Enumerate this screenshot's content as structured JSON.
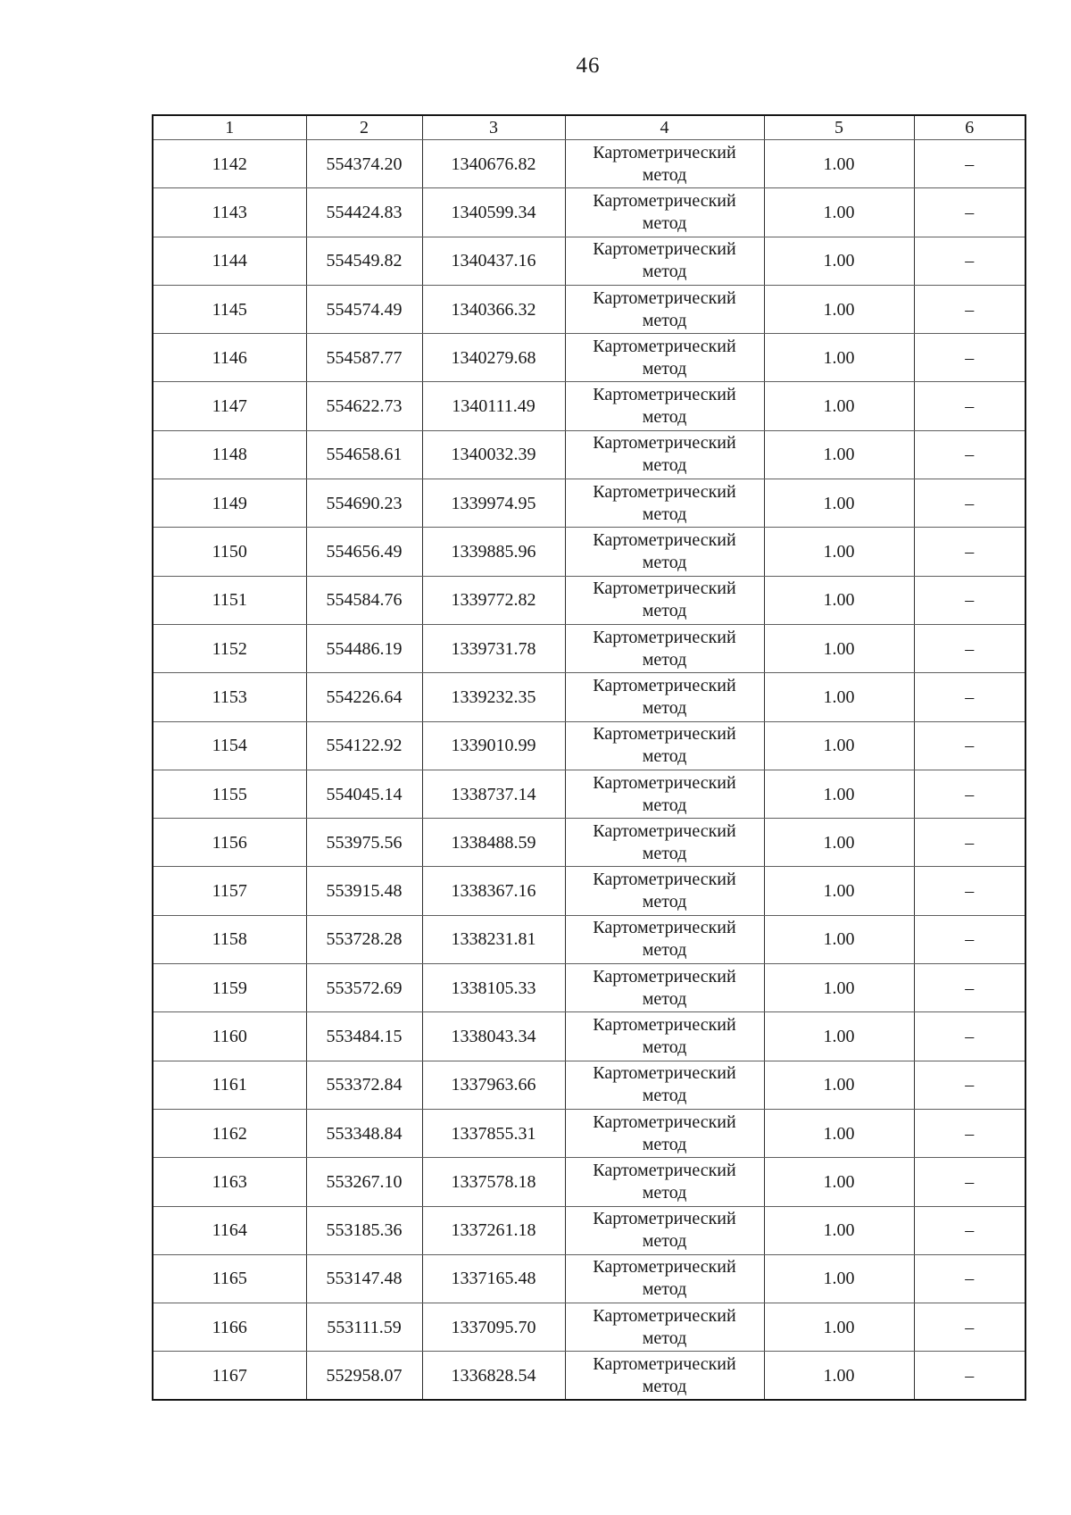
{
  "page_number": "46",
  "table": {
    "headers": [
      "1",
      "2",
      "3",
      "4",
      "5",
      "6"
    ],
    "rows": [
      [
        "1142",
        "554374.20",
        "1340676.82",
        "Картометрический метод",
        "1.00",
        "–"
      ],
      [
        "1143",
        "554424.83",
        "1340599.34",
        "Картометрический метод",
        "1.00",
        "–"
      ],
      [
        "1144",
        "554549.82",
        "1340437.16",
        "Картометрический метод",
        "1.00",
        "–"
      ],
      [
        "1145",
        "554574.49",
        "1340366.32",
        "Картометрический метод",
        "1.00",
        "–"
      ],
      [
        "1146",
        "554587.77",
        "1340279.68",
        "Картометрический метод",
        "1.00",
        "–"
      ],
      [
        "1147",
        "554622.73",
        "1340111.49",
        "Картометрический метод",
        "1.00",
        "–"
      ],
      [
        "1148",
        "554658.61",
        "1340032.39",
        "Картометрический метод",
        "1.00",
        "–"
      ],
      [
        "1149",
        "554690.23",
        "1339974.95",
        "Картометрический метод",
        "1.00",
        "–"
      ],
      [
        "1150",
        "554656.49",
        "1339885.96",
        "Картометрический метод",
        "1.00",
        "–"
      ],
      [
        "1151",
        "554584.76",
        "1339772.82",
        "Картометрический метод",
        "1.00",
        "–"
      ],
      [
        "1152",
        "554486.19",
        "1339731.78",
        "Картометрический метод",
        "1.00",
        "–"
      ],
      [
        "1153",
        "554226.64",
        "1339232.35",
        "Картометрический метод",
        "1.00",
        "–"
      ],
      [
        "1154",
        "554122.92",
        "1339010.99",
        "Картометрический метод",
        "1.00",
        "–"
      ],
      [
        "1155",
        "554045.14",
        "1338737.14",
        "Картометрический метод",
        "1.00",
        "–"
      ],
      [
        "1156",
        "553975.56",
        "1338488.59",
        "Картометрический метод",
        "1.00",
        "–"
      ],
      [
        "1157",
        "553915.48",
        "1338367.16",
        "Картометрический метод",
        "1.00",
        "–"
      ],
      [
        "1158",
        "553728.28",
        "1338231.81",
        "Картометрический метод",
        "1.00",
        "–"
      ],
      [
        "1159",
        "553572.69",
        "1338105.33",
        "Картометрический метод",
        "1.00",
        "–"
      ],
      [
        "1160",
        "553484.15",
        "1338043.34",
        "Картометрический метод",
        "1.00",
        "–"
      ],
      [
        "1161",
        "553372.84",
        "1337963.66",
        "Картометрический метод",
        "1.00",
        "–"
      ],
      [
        "1162",
        "553348.84",
        "1337855.31",
        "Картометрический метод",
        "1.00",
        "–"
      ],
      [
        "1163",
        "553267.10",
        "1337578.18",
        "Картометрический метод",
        "1.00",
        "–"
      ],
      [
        "1164",
        "553185.36",
        "1337261.18",
        "Картометрический метод",
        "1.00",
        "–"
      ],
      [
        "1165",
        "553147.48",
        "1337165.48",
        "Картометрический метод",
        "1.00",
        "–"
      ],
      [
        "1166",
        "553111.59",
        "1337095.70",
        "Картометрический метод",
        "1.00",
        "–"
      ],
      [
        "1167",
        "552958.07",
        "1336828.54",
        "Картометрический метод",
        "1.00",
        "–"
      ]
    ]
  }
}
